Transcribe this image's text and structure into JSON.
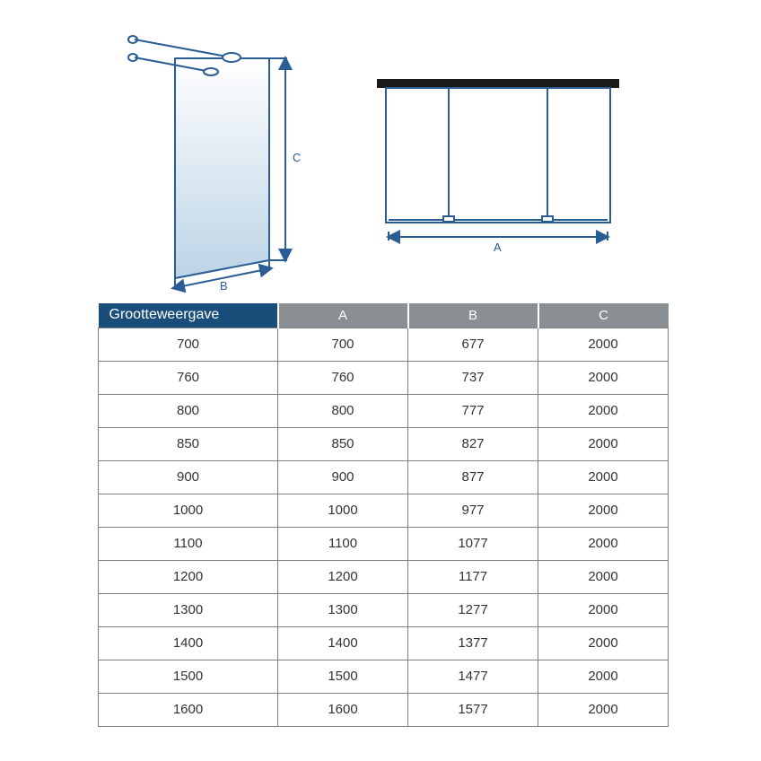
{
  "diagram": {
    "stroke": "#2a5d94",
    "stroke_width": 2,
    "panel_fill_top": "#ffffff",
    "panel_fill_bot": "#bcd4e6",
    "black": "#1a1a1a",
    "label_B": "B",
    "label_C": "C",
    "label_A": "A"
  },
  "table": {
    "header_first_bg": "#1a4e7a",
    "header_rest_bg": "#8a8f93",
    "header_text_color": "#ffffff",
    "border_color": "#808080",
    "cell_text_color": "#333333",
    "columns": [
      "Grootteweergave",
      "A",
      "B",
      "C"
    ],
    "rows": [
      [
        "700",
        "700",
        "677",
        "2000"
      ],
      [
        "760",
        "760",
        "737",
        "2000"
      ],
      [
        "800",
        "800",
        "777",
        "2000"
      ],
      [
        "850",
        "850",
        "827",
        "2000"
      ],
      [
        "900",
        "900",
        "877",
        "2000"
      ],
      [
        "1000",
        "1000",
        "977",
        "2000"
      ],
      [
        "1100",
        "1100",
        "1077",
        "2000"
      ],
      [
        "1200",
        "1200",
        "1177",
        "2000"
      ],
      [
        "1300",
        "1300",
        "1277",
        "2000"
      ],
      [
        "1400",
        "1400",
        "1377",
        "2000"
      ],
      [
        "1500",
        "1500",
        "1477",
        "2000"
      ],
      [
        "1600",
        "1600",
        "1577",
        "2000"
      ]
    ]
  }
}
